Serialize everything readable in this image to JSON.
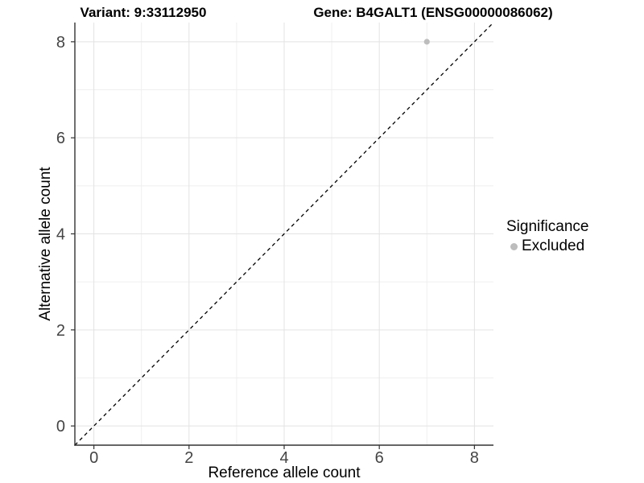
{
  "figure": {
    "title_left": "Variant: 9:33112950",
    "title_right": "Gene: B4GALT1 (ENSG00000086062)"
  },
  "axes": {
    "x_label": "Reference allele count",
    "y_label": "Alternative allele count"
  },
  "legend": {
    "title": "Significance",
    "entries": [
      {
        "label": "Excluded",
        "color": "#bdbdbd"
      }
    ]
  },
  "chart_data": {
    "type": "scatter",
    "title": "Variant: 9:33112950   Gene: B4GALT1 (ENSG00000086062)",
    "xlabel": "Reference allele count",
    "ylabel": "Alternative allele count",
    "xlim": [
      -0.4,
      8.4
    ],
    "ylim": [
      -0.4,
      8.4
    ],
    "x_ticks": [
      0,
      2,
      4,
      6,
      8
    ],
    "y_ticks": [
      0,
      2,
      4,
      6,
      8
    ],
    "x_minor_ticks": [
      1,
      3,
      5,
      7
    ],
    "y_minor_ticks": [
      1,
      3,
      5,
      7
    ],
    "grid": true,
    "legend_position": "right",
    "series": [
      {
        "name": "Excluded",
        "points": [
          {
            "x": 7,
            "y": 8
          }
        ],
        "color": "#bdbdbd"
      }
    ],
    "reference_line": {
      "kind": "identity",
      "style": "dashed",
      "x1": -0.4,
      "y1": -0.4,
      "x2": 8.4,
      "y2": 8.4,
      "color": "#000000"
    },
    "colors": {
      "background": "#ffffff",
      "grid_major": "#e3e3e3",
      "grid_minor": "#efefef",
      "axis_line": "#333333",
      "tick_mark": "#333333",
      "tick_text": "#444444",
      "point": "#bdbdbd"
    }
  }
}
